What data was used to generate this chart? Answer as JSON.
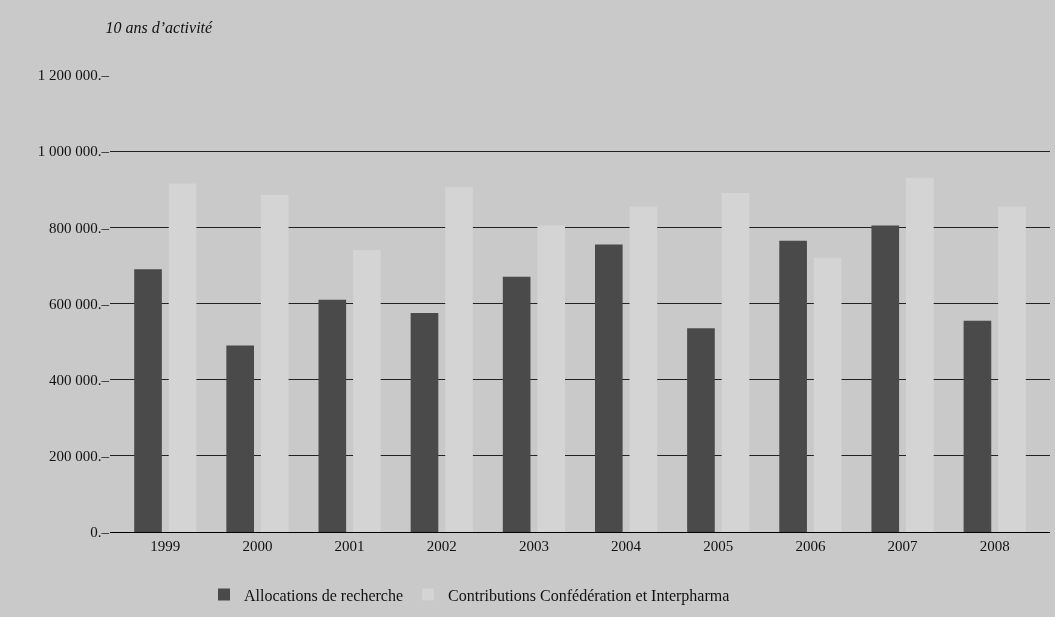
{
  "chart_data": {
    "type": "bar",
    "title": "10 ans d’activité",
    "categories": [
      "1999",
      "2000",
      "2001",
      "2002",
      "2003",
      "2004",
      "2005",
      "2006",
      "2007",
      "2008"
    ],
    "series": [
      {
        "name": "Allocations de recherche",
        "color": "#4a4a4a",
        "values": [
          690000,
          490000,
          610000,
          575000,
          670000,
          755000,
          535000,
          765000,
          805000,
          555000
        ]
      },
      {
        "name": "Contributions Confédération et Interpharma",
        "color": "#d4d4d4",
        "values": [
          915000,
          885000,
          740000,
          905000,
          805000,
          855000,
          890000,
          720000,
          930000,
          855000
        ]
      }
    ],
    "ylim": [
      0,
      1200000
    ],
    "yticks": [
      {
        "value": 0,
        "label": "0.–"
      },
      {
        "value": 200000,
        "label": "200 000.–"
      },
      {
        "value": 400000,
        "label": "400 000.–"
      },
      {
        "value": 600000,
        "label": "600 000.–"
      },
      {
        "value": 800000,
        "label": "800 000.–"
      },
      {
        "value": 1000000,
        "label": "1 000 000.–"
      },
      {
        "value": 1200000,
        "label": "1 200 000.–"
      }
    ],
    "grid": "y",
    "legend": "bottom"
  }
}
